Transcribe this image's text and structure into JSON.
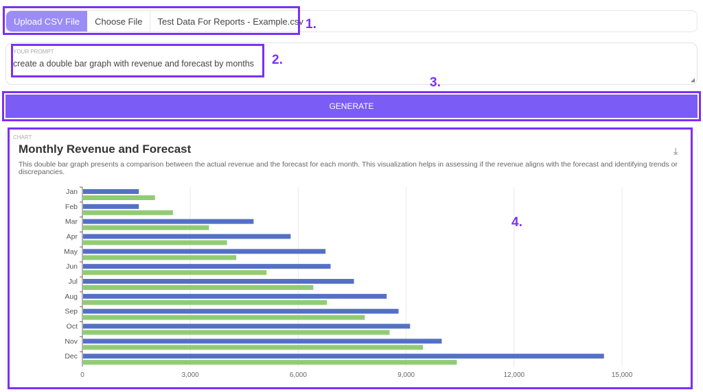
{
  "upload": {
    "button_label": "Upload CSV File",
    "choose_label": "Choose File",
    "file_name": "Test Data For Reports - Example.csv"
  },
  "prompt": {
    "label": "YOUR PROMPT",
    "value": "create a double bar graph with revenue and forecast by months"
  },
  "generate_label": "GENERATE",
  "chart_card": {
    "label": "CHART",
    "download_icon": "download-icon"
  },
  "annotations": [
    "1.",
    "2.",
    "3.",
    "4."
  ],
  "colors": {
    "accent": "#7b5cf5",
    "annotation": "#7b2ff7",
    "revenue": "#5470c6",
    "forecast": "#91cc75"
  },
  "chart_data": {
    "type": "bar",
    "orientation": "horizontal",
    "title": "Monthly Revenue and Forecast",
    "subtitle": "This double bar graph presents a comparison between the actual revenue and the forecast for each month. This visualization helps in assessing if the revenue aligns with the forecast and identifying trends or discrepancies.",
    "categories": [
      "Jan",
      "Feb",
      "Mar",
      "Apr",
      "May",
      "Jun",
      "Jul",
      "Aug",
      "Sep",
      "Oct",
      "Nov",
      "Dec"
    ],
    "series": [
      {
        "values": [
          1550,
          1550,
          4740,
          5770,
          6740,
          6880,
          7530,
          8440,
          8770,
          9090,
          9970,
          14480
        ],
        "color": "#5470c6"
      },
      {
        "values": [
          2000,
          2500,
          3500,
          4000,
          4260,
          5100,
          6400,
          6780,
          7830,
          8520,
          9450,
          10390
        ],
        "color": "#91cc75"
      }
    ],
    "xlim": [
      0,
      15000
    ],
    "xticks": [
      "0",
      "3,000",
      "6,000",
      "9,000",
      "12,000",
      "15,000"
    ],
    "grid": true
  }
}
